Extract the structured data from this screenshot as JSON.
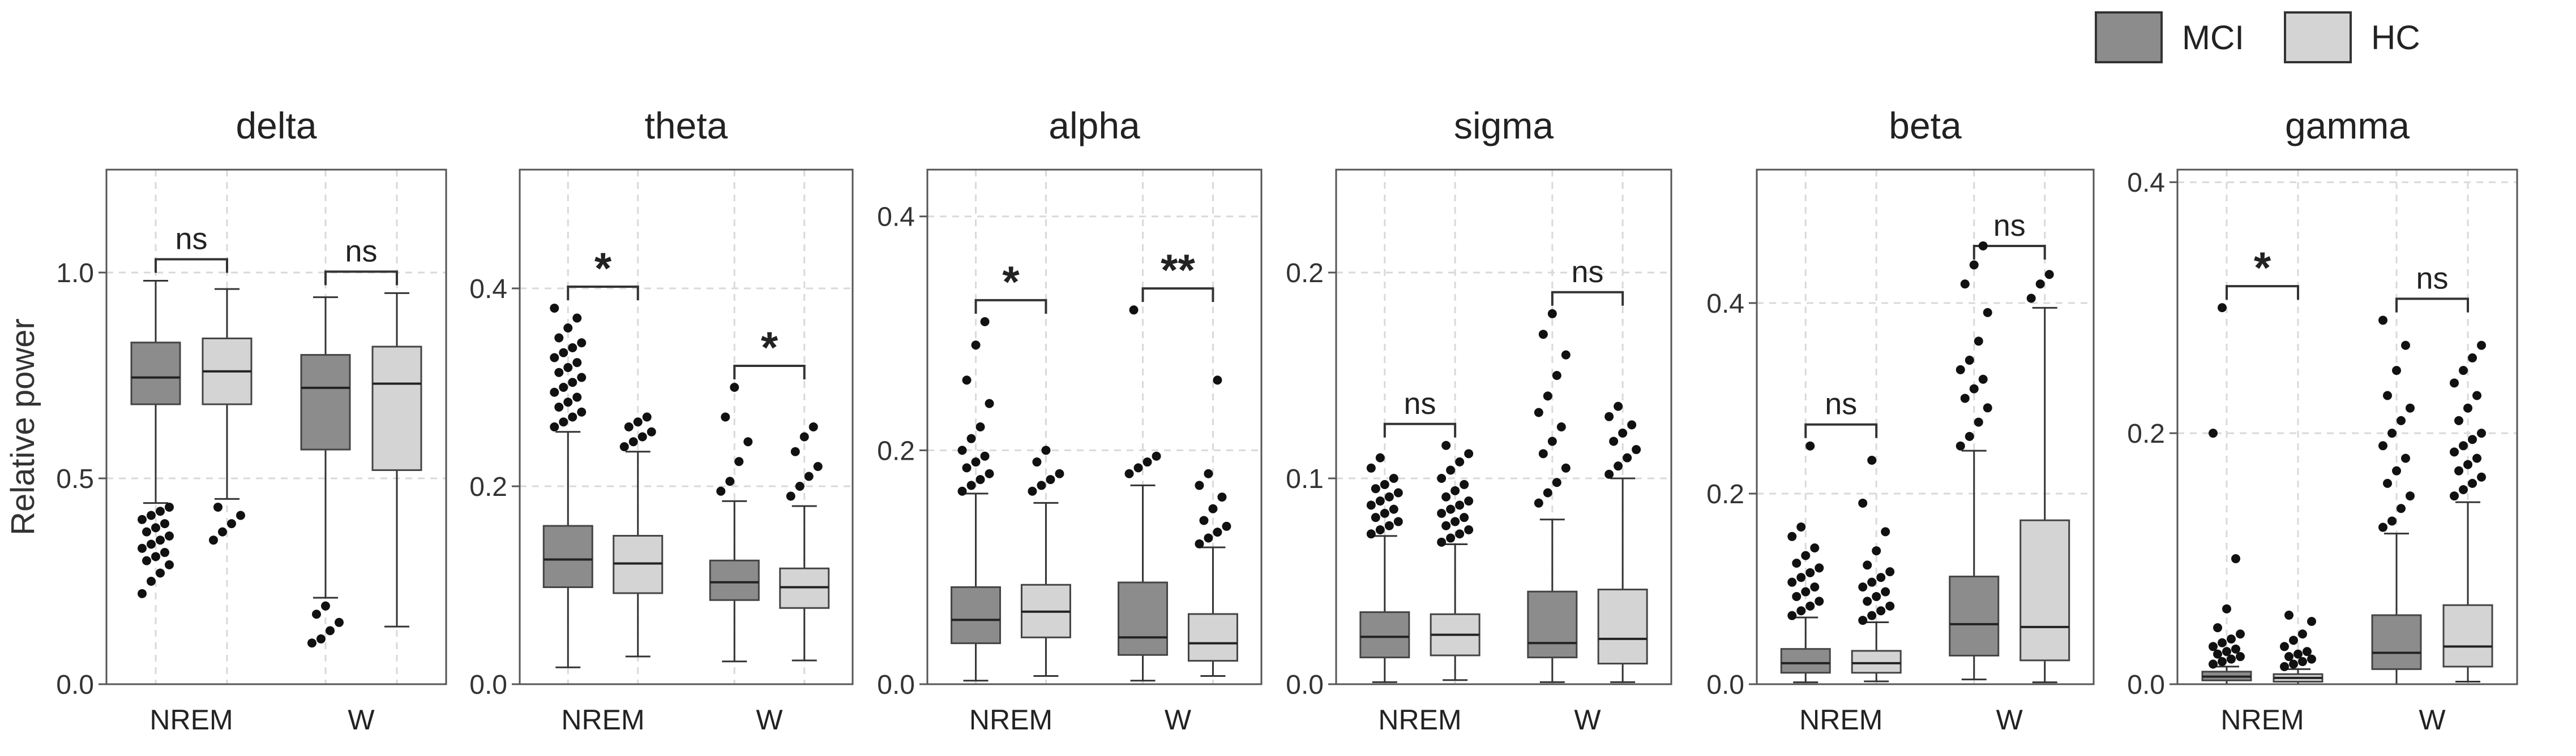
{
  "chart_data": {
    "type": "box",
    "ylabel": "Relative power",
    "categories": [
      "NREM",
      "W"
    ],
    "legend": {
      "placement": "top-right",
      "entries": [
        {
          "name": "MCI",
          "color": "#8c8c8c"
        },
        {
          "name": "HC",
          "color": "#d4d4d4"
        }
      ]
    },
    "colors": {
      "MCI": "#8c8c8c",
      "HC": "#d4d4d4",
      "grid": "#d9d9d9"
    },
    "grid": true,
    "panels": [
      {
        "title": "delta",
        "ylim": [
          0,
          1.25
        ],
        "yticks": [
          0.0,
          0.5,
          1.0
        ],
        "ytick_labels": [
          "0.0",
          "0.5",
          "1.0"
        ],
        "significance": {
          "NREM": "ns",
          "W": "ns"
        },
        "boxes": {
          "NREM": {
            "MCI": {
              "whisker_low": 0.44,
              "q1": 0.68,
              "median": 0.745,
              "q3": 0.83,
              "whisker_high": 0.98,
              "outliers": [
                0.22,
                0.25,
                0.27,
                0.29,
                0.3,
                0.31,
                0.32,
                0.33,
                0.34,
                0.35,
                0.36,
                0.37,
                0.38,
                0.39,
                0.4,
                0.41,
                0.42,
                0.43
              ]
            },
            "HC": {
              "whisker_low": 0.45,
              "q1": 0.68,
              "median": 0.76,
              "q3": 0.84,
              "whisker_high": 0.96,
              "outliers": [
                0.35,
                0.37,
                0.39,
                0.41,
                0.43
              ]
            }
          },
          "W": {
            "MCI": {
              "whisker_low": 0.21,
              "q1": 0.57,
              "median": 0.72,
              "q3": 0.8,
              "whisker_high": 0.94,
              "outliers": [
                0.1,
                0.11,
                0.13,
                0.15,
                0.17,
                0.19
              ]
            },
            "HC": {
              "whisker_low": 0.14,
              "q1": 0.52,
              "median": 0.73,
              "q3": 0.82,
              "whisker_high": 0.95,
              "outliers": []
            }
          }
        }
      },
      {
        "title": "theta",
        "ylim": [
          0,
          0.52
        ],
        "yticks": [
          0.0,
          0.2,
          0.4
        ],
        "ytick_labels": [
          "0.0",
          "0.2",
          "0.4"
        ],
        "significance": {
          "NREM": "*",
          "W": "*"
        },
        "boxes": {
          "NREM": {
            "MCI": {
              "whisker_low": 0.017,
              "q1": 0.098,
              "median": 0.126,
              "q3": 0.16,
              "whisker_high": 0.255,
              "outliers": [
                0.26,
                0.265,
                0.27,
                0.275,
                0.28,
                0.285,
                0.29,
                0.295,
                0.3,
                0.305,
                0.31,
                0.315,
                0.32,
                0.325,
                0.33,
                0.335,
                0.34,
                0.345,
                0.35,
                0.36,
                0.37,
                0.38
              ]
            },
            "HC": {
              "whisker_low": 0.028,
              "q1": 0.092,
              "median": 0.122,
              "q3": 0.15,
              "whisker_high": 0.235,
              "outliers": [
                0.24,
                0.245,
                0.25,
                0.255,
                0.26,
                0.265,
                0.27
              ]
            }
          },
          "W": {
            "MCI": {
              "whisker_low": 0.023,
              "q1": 0.085,
              "median": 0.103,
              "q3": 0.125,
              "whisker_high": 0.185,
              "outliers": [
                0.195,
                0.205,
                0.225,
                0.245,
                0.27,
                0.3
              ]
            },
            "HC": {
              "whisker_low": 0.024,
              "q1": 0.077,
              "median": 0.098,
              "q3": 0.117,
              "whisker_high": 0.18,
              "outliers": [
                0.19,
                0.2,
                0.21,
                0.22,
                0.235,
                0.25,
                0.26
              ]
            }
          }
        }
      },
      {
        "title": "alpha",
        "ylim": [
          0,
          0.44
        ],
        "yticks": [
          0.0,
          0.2,
          0.4
        ],
        "ytick_labels": [
          "0.0",
          "0.2",
          "0.4"
        ],
        "significance": {
          "NREM": "*",
          "W": "**"
        },
        "boxes": {
          "NREM": {
            "MCI": {
              "whisker_low": 0.003,
              "q1": 0.035,
              "median": 0.055,
              "q3": 0.083,
              "whisker_high": 0.163,
              "outliers": [
                0.165,
                0.17,
                0.175,
                0.18,
                0.185,
                0.19,
                0.195,
                0.2,
                0.21,
                0.22,
                0.24,
                0.26,
                0.29,
                0.31
              ]
            },
            "HC": {
              "whisker_low": 0.007,
              "q1": 0.04,
              "median": 0.062,
              "q3": 0.085,
              "whisker_high": 0.155,
              "outliers": [
                0.165,
                0.17,
                0.175,
                0.18,
                0.19,
                0.2
              ]
            }
          },
          "W": {
            "MCI": {
              "whisker_low": 0.003,
              "q1": 0.025,
              "median": 0.04,
              "q3": 0.087,
              "whisker_high": 0.17,
              "outliers": [
                0.18,
                0.185,
                0.19,
                0.195,
                0.32
              ]
            },
            "HC": {
              "whisker_low": 0.007,
              "q1": 0.02,
              "median": 0.035,
              "q3": 0.06,
              "whisker_high": 0.117,
              "outliers": [
                0.12,
                0.125,
                0.13,
                0.135,
                0.14,
                0.15,
                0.16,
                0.17,
                0.18,
                0.26
              ]
            }
          }
        }
      },
      {
        "title": "sigma",
        "ylim": [
          0,
          0.25
        ],
        "yticks": [
          0.0,
          0.1,
          0.2
        ],
        "ytick_labels": [
          "0.0",
          "0.1",
          "0.2"
        ],
        "significance": {
          "NREM": "ns",
          "W": "ns"
        },
        "boxes": {
          "NREM": {
            "MCI": {
              "whisker_low": 0.001,
              "q1": 0.013,
              "median": 0.023,
              "q3": 0.035,
              "whisker_high": 0.072,
              "outliers": [
                0.073,
                0.075,
                0.077,
                0.079,
                0.081,
                0.083,
                0.085,
                0.087,
                0.089,
                0.091,
                0.093,
                0.095,
                0.097,
                0.1,
                0.105,
                0.11
              ]
            },
            "HC": {
              "whisker_low": 0.002,
              "q1": 0.014,
              "median": 0.024,
              "q3": 0.034,
              "whisker_high": 0.068,
              "outliers": [
                0.069,
                0.071,
                0.073,
                0.075,
                0.077,
                0.079,
                0.081,
                0.083,
                0.085,
                0.087,
                0.089,
                0.091,
                0.094,
                0.097,
                0.1,
                0.104,
                0.108,
                0.112,
                0.116
              ]
            },
            "_": {}
          },
          "W": {
            "MCI": {
              "whisker_low": 0.001,
              "q1": 0.013,
              "median": 0.02,
              "q3": 0.045,
              "whisker_high": 0.08,
              "outliers": [
                0.088,
                0.093,
                0.098,
                0.105,
                0.112,
                0.118,
                0.125,
                0.132,
                0.14,
                0.15,
                0.16,
                0.17,
                0.18
              ]
            },
            "HC": {
              "whisker_low": 0.001,
              "q1": 0.01,
              "median": 0.022,
              "q3": 0.046,
              "whisker_high": 0.1,
              "outliers": [
                0.102,
                0.106,
                0.11,
                0.114,
                0.118,
                0.122,
                0.126,
                0.13,
                0.135
              ]
            }
          }
        }
      },
      {
        "title": "beta",
        "ylim": [
          0,
          0.54
        ],
        "yticks": [
          0.0,
          0.2,
          0.4
        ],
        "ytick_labels": [
          "0.0",
          "0.2",
          "0.4"
        ],
        "significance": {
          "NREM": "ns",
          "W": "ns"
        },
        "boxes": {
          "NREM": {
            "MCI": {
              "whisker_low": 0.002,
              "q1": 0.012,
              "median": 0.022,
              "q3": 0.037,
              "whisker_high": 0.07,
              "outliers": [
                0.072,
                0.077,
                0.082,
                0.087,
                0.092,
                0.097,
                0.102,
                0.107,
                0.112,
                0.117,
                0.122,
                0.127,
                0.135,
                0.143,
                0.155,
                0.165,
                0.25
              ]
            },
            "HC": {
              "whisker_low": 0.003,
              "q1": 0.012,
              "median": 0.022,
              "q3": 0.035,
              "whisker_high": 0.065,
              "outliers": [
                0.067,
                0.072,
                0.077,
                0.082,
                0.087,
                0.092,
                0.097,
                0.102,
                0.107,
                0.112,
                0.118,
                0.125,
                0.14,
                0.16,
                0.19,
                0.235
              ]
            }
          },
          "W": {
            "MCI": {
              "whisker_low": 0.005,
              "q1": 0.03,
              "median": 0.063,
              "q3": 0.113,
              "whisker_high": 0.245,
              "outliers": [
                0.25,
                0.26,
                0.275,
                0.29,
                0.3,
                0.31,
                0.32,
                0.33,
                0.34,
                0.36,
                0.39,
                0.42,
                0.44,
                0.46
              ]
            },
            "HC": {
              "whisker_low": 0.002,
              "q1": 0.025,
              "median": 0.06,
              "q3": 0.172,
              "whisker_high": 0.395,
              "outliers": [
                0.405,
                0.42,
                0.43
              ]
            }
          }
        }
      },
      {
        "title": "gamma",
        "ylim": [
          0,
          0.41
        ],
        "yticks": [
          0.0,
          0.2,
          0.4
        ],
        "ytick_labels": [
          "0.0",
          "0.2",
          "0.4"
        ],
        "significance": {
          "NREM": "*",
          "W": "ns"
        },
        "boxes": {
          "NREM": {
            "MCI": {
              "whisker_low": 0.0,
              "q1": 0.003,
              "median": 0.006,
              "q3": 0.01,
              "whisker_high": 0.014,
              "outliers": [
                0.016,
                0.018,
                0.02,
                0.022,
                0.024,
                0.026,
                0.028,
                0.03,
                0.033,
                0.036,
                0.04,
                0.045,
                0.06,
                0.1,
                0.2,
                0.3
              ]
            },
            "HC": {
              "whisker_low": 0.0,
              "q1": 0.002,
              "median": 0.005,
              "q3": 0.008,
              "whisker_high": 0.012,
              "outliers": [
                0.014,
                0.016,
                0.018,
                0.02,
                0.022,
                0.024,
                0.026,
                0.03,
                0.035,
                0.04,
                0.05,
                0.055
              ]
            }
          },
          "W": {
            "MCI": {
              "whisker_low": 0.0,
              "q1": 0.012,
              "median": 0.025,
              "q3": 0.055,
              "whisker_high": 0.12,
              "outliers": [
                0.125,
                0.13,
                0.14,
                0.15,
                0.16,
                0.17,
                0.18,
                0.19,
                0.2,
                0.21,
                0.22,
                0.23,
                0.25,
                0.27,
                0.29
              ]
            },
            "HC": {
              "whisker_low": 0.002,
              "q1": 0.014,
              "median": 0.03,
              "q3": 0.063,
              "whisker_high": 0.145,
              "outliers": [
                0.15,
                0.155,
                0.16,
                0.165,
                0.17,
                0.175,
                0.18,
                0.185,
                0.19,
                0.195,
                0.2,
                0.21,
                0.22,
                0.23,
                0.24,
                0.25,
                0.26,
                0.27
              ]
            }
          }
        }
      }
    ]
  }
}
